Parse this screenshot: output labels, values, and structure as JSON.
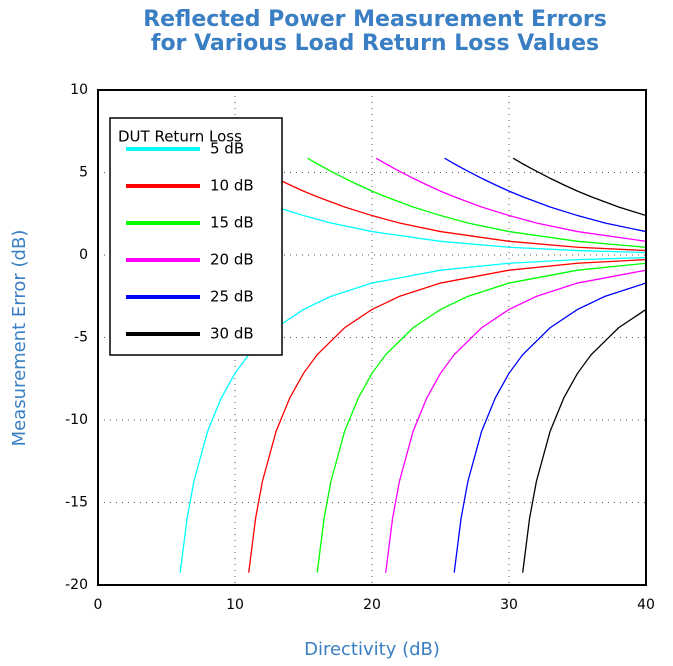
{
  "chart_data": {
    "type": "line",
    "title": [
      "Reflected Power Measurement Errors",
      "for Various Load Return Loss Values"
    ],
    "xlabel": "Directivity (dB)",
    "ylabel": "Measurement Error (dB)",
    "legend_title": "DUT Return Loss",
    "xlim": [
      0,
      40
    ],
    "xticks": [
      0,
      10,
      20,
      30,
      40
    ],
    "ylim": [
      -20,
      10
    ],
    "yticks": [
      -20,
      -15,
      -10,
      -5,
      0,
      5,
      10
    ],
    "grid": true,
    "legend": "upper left",
    "series": [
      {
        "name": "5 dB",
        "color": "#00ffff",
        "x": [
          5.3,
          6,
          6.5,
          7,
          8,
          9,
          10,
          11,
          13,
          15,
          17,
          20,
          25,
          30,
          35,
          40
        ],
        "upper": [
          5.87,
          5.53,
          5.3,
          5.08,
          4.65,
          4.25,
          3.87,
          3.53,
          2.91,
          2.39,
          1.94,
          1.42,
          0.83,
          0.47,
          0.27,
          0.15
        ],
        "lower": [
          null,
          -19.25,
          -15.97,
          -13.72,
          -10.69,
          -8.66,
          -7.17,
          -6.04,
          -4.41,
          -3.3,
          -2.51,
          -1.7,
          -0.92,
          -0.5,
          -0.28,
          -0.16
        ]
      },
      {
        "name": "10 dB",
        "color": "#ff0000",
        "x": [
          10.3,
          11,
          11.5,
          12,
          13,
          14,
          15,
          16,
          18,
          20,
          22,
          25,
          30,
          35,
          40
        ],
        "upper": [
          5.87,
          5.53,
          5.3,
          5.08,
          4.65,
          4.25,
          3.87,
          3.53,
          2.91,
          2.39,
          1.94,
          1.42,
          0.83,
          0.47,
          0.27
        ],
        "lower": [
          null,
          -19.25,
          -15.97,
          -13.72,
          -10.69,
          -8.66,
          -7.17,
          -6.04,
          -4.41,
          -3.3,
          -2.51,
          -1.7,
          -0.92,
          -0.5,
          -0.28
        ]
      },
      {
        "name": "15 dB",
        "color": "#00ff00",
        "x": [
          15.3,
          16,
          16.5,
          17,
          18,
          19,
          20,
          21,
          23,
          25,
          27,
          30,
          35,
          40
        ],
        "upper": [
          5.87,
          5.53,
          5.3,
          5.08,
          4.65,
          4.25,
          3.87,
          3.53,
          2.91,
          2.39,
          1.94,
          1.42,
          0.83,
          0.47
        ],
        "lower": [
          null,
          -19.25,
          -15.97,
          -13.72,
          -10.69,
          -8.66,
          -7.17,
          -6.04,
          -4.41,
          -3.3,
          -2.51,
          -1.7,
          -0.92,
          -0.5
        ]
      },
      {
        "name": "20 dB",
        "color": "#ff00ff",
        "x": [
          20.3,
          21,
          21.5,
          22,
          23,
          24,
          25,
          26,
          28,
          30,
          32,
          35,
          40
        ],
        "upper": [
          5.87,
          5.53,
          5.3,
          5.08,
          4.65,
          4.25,
          3.87,
          3.53,
          2.91,
          2.39,
          1.94,
          1.42,
          0.83
        ],
        "lower": [
          null,
          -19.25,
          -15.97,
          -13.72,
          -10.69,
          -8.66,
          -7.17,
          -6.04,
          -4.41,
          -3.3,
          -2.51,
          -1.7,
          -0.92
        ]
      },
      {
        "name": "25 dB",
        "color": "#0000ff",
        "x": [
          25.3,
          26,
          26.5,
          27,
          28,
          29,
          30,
          31,
          33,
          35,
          37,
          40
        ],
        "upper": [
          5.87,
          5.53,
          5.3,
          5.08,
          4.65,
          4.25,
          3.87,
          3.53,
          2.91,
          2.39,
          1.94,
          1.42
        ],
        "lower": [
          null,
          -19.25,
          -15.97,
          -13.72,
          -10.69,
          -8.66,
          -7.17,
          -6.04,
          -4.41,
          -3.3,
          -2.51,
          -1.7
        ]
      },
      {
        "name": "30 dB",
        "color": "#000000",
        "x": [
          30.3,
          31,
          31.5,
          32,
          33,
          34,
          35,
          36,
          38,
          40
        ],
        "upper": [
          5.87,
          5.53,
          5.3,
          5.08,
          4.65,
          4.25,
          3.87,
          3.53,
          2.91,
          2.39
        ],
        "lower": [
          null,
          -19.25,
          -15.97,
          -13.72,
          -10.69,
          -8.66,
          -7.17,
          -6.04,
          -4.41,
          -3.3
        ]
      }
    ]
  }
}
